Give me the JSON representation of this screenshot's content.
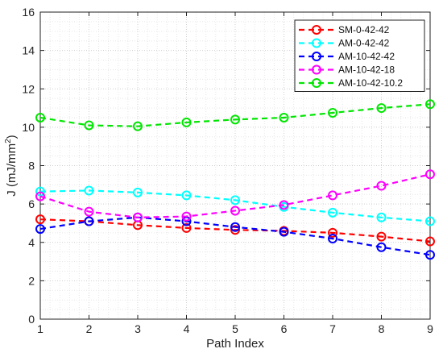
{
  "chart_data": {
    "type": "line",
    "xlabel": "Path Index",
    "ylabel": "J (mJ/mm",
    "ylabel_superscript": "2",
    "ylabel_close": ")",
    "xlim": [
      1,
      9
    ],
    "ylim": [
      0,
      16
    ],
    "x_ticks": [
      "1",
      "2",
      "3",
      "4",
      "5",
      "6",
      "7",
      "8",
      "9"
    ],
    "y_ticks": [
      "0",
      "2",
      "4",
      "6",
      "8",
      "10",
      "12",
      "14",
      "16"
    ],
    "grid": true,
    "minor_grid": true,
    "legend_position": "top-right",
    "x": [
      1,
      2,
      3,
      4,
      5,
      6,
      7,
      8,
      9
    ],
    "series": [
      {
        "name": "SM-0-42-42",
        "color": "#ff0000",
        "values": [
          5.2,
          5.1,
          4.9,
          4.75,
          4.65,
          4.6,
          4.5,
          4.3,
          4.05
        ]
      },
      {
        "name": "AM-0-42-42",
        "color": "#00ffff",
        "values": [
          6.65,
          6.7,
          6.6,
          6.45,
          6.2,
          5.85,
          5.55,
          5.3,
          5.1
        ]
      },
      {
        "name": "AM-10-42-42",
        "color": "#0000ff",
        "values": [
          4.7,
          5.1,
          5.3,
          5.1,
          4.8,
          4.55,
          4.2,
          3.75,
          3.35
        ]
      },
      {
        "name": "AM-10-42-18",
        "color": "#ff00ff",
        "values": [
          6.4,
          5.6,
          5.3,
          5.35,
          5.65,
          5.95,
          6.45,
          6.95,
          7.55
        ]
      },
      {
        "name": "AM-10-42-10.2",
        "color": "#00e600",
        "values": [
          10.5,
          10.1,
          10.05,
          10.25,
          10.4,
          10.5,
          10.75,
          11.0,
          11.2
        ]
      }
    ]
  }
}
